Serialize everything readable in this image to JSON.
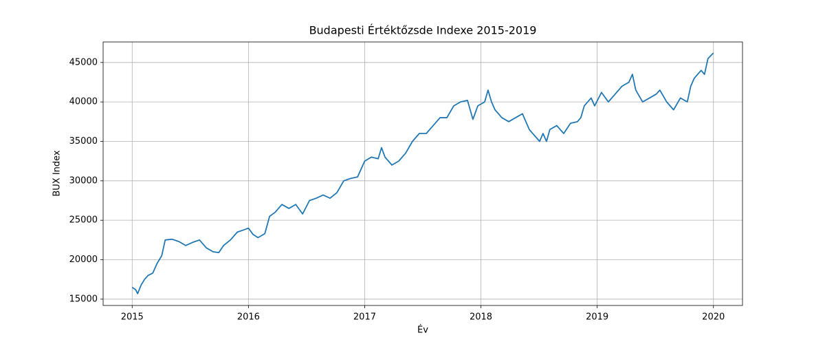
{
  "chart_data": {
    "type": "line",
    "title": "Budapesti Értéktőzsde Indexe 2015-2019",
    "x_label": "Év",
    "y_label": "BUX Index",
    "x": [
      2015.0,
      2015.03,
      2015.047,
      2015.077,
      2015.106,
      2015.136,
      2015.177,
      2015.213,
      2015.254,
      2015.284,
      2015.343,
      2015.402,
      2015.461,
      2015.52,
      2015.579,
      2015.638,
      2015.697,
      2015.745,
      2015.786,
      2015.845,
      2015.904,
      2015.963,
      2016.0,
      2016.04,
      2016.082,
      2016.141,
      2016.182,
      2016.229,
      2016.288,
      2016.348,
      2016.407,
      2016.466,
      2016.525,
      2016.584,
      2016.643,
      2016.702,
      2016.761,
      2016.82,
      2016.879,
      2016.939,
      2017.0,
      2017.057,
      2017.116,
      2017.145,
      2017.175,
      2017.234,
      2017.293,
      2017.352,
      2017.411,
      2017.47,
      2017.53,
      2017.589,
      2017.648,
      2017.707,
      2017.766,
      2017.825,
      2017.884,
      2017.931,
      2017.973,
      2018.032,
      2018.061,
      2018.091,
      2018.121,
      2018.18,
      2018.239,
      2018.298,
      2018.357,
      2018.416,
      2018.475,
      2018.505,
      2018.534,
      2018.564,
      2018.593,
      2018.652,
      2018.712,
      2018.771,
      2018.83,
      2018.859,
      2018.889,
      2018.918,
      2018.948,
      2018.978,
      2019.037,
      2019.096,
      2019.155,
      2019.214,
      2019.273,
      2019.303,
      2019.332,
      2019.391,
      2019.45,
      2019.509,
      2019.539,
      2019.598,
      2019.657,
      2019.716,
      2019.775,
      2019.805,
      2019.835,
      2019.894,
      2019.923,
      2019.953,
      2020.0
    ],
    "series": [
      {
        "name": "BUX",
        "color": "#1f77b4",
        "values": [
          16500,
          16200,
          15700,
          16800,
          17500,
          18000,
          18300,
          19500,
          20500,
          22500,
          22600,
          22300,
          21800,
          22200,
          22500,
          21500,
          21000,
          20900,
          21800,
          22500,
          23500,
          23800,
          24000,
          23200,
          22800,
          23300,
          25500,
          26000,
          27000,
          26500,
          27000,
          25800,
          27500,
          27800,
          28200,
          27800,
          28500,
          30000,
          30300,
          30500,
          32500,
          33000,
          32800,
          34200,
          33000,
          32000,
          32500,
          33500,
          35000,
          36000,
          36000,
          37000,
          38000,
          38000,
          39500,
          40000,
          40200,
          37800,
          39500,
          40000,
          41500,
          40000,
          39000,
          38000,
          37500,
          38000,
          38500,
          36500,
          35500,
          35000,
          36000,
          35000,
          36500,
          37000,
          36000,
          37300,
          37500,
          38000,
          39500,
          40000,
          40500,
          39500,
          41200,
          40000,
          41000,
          42000,
          42500,
          43500,
          41500,
          40000,
          40500,
          41000,
          41500,
          40000,
          39000,
          40500,
          40000,
          42000,
          43000,
          44000,
          43500,
          45500,
          46200
        ]
      }
    ],
    "xlim": [
      2014.75,
      2020.25
    ],
    "xticks": [
      2015,
      2016,
      2017,
      2018,
      2019,
      2020
    ],
    "ylim": [
      14200,
      47600
    ],
    "yticks": [
      15000,
      20000,
      25000,
      30000,
      35000,
      40000,
      45000
    ],
    "grid": true
  }
}
